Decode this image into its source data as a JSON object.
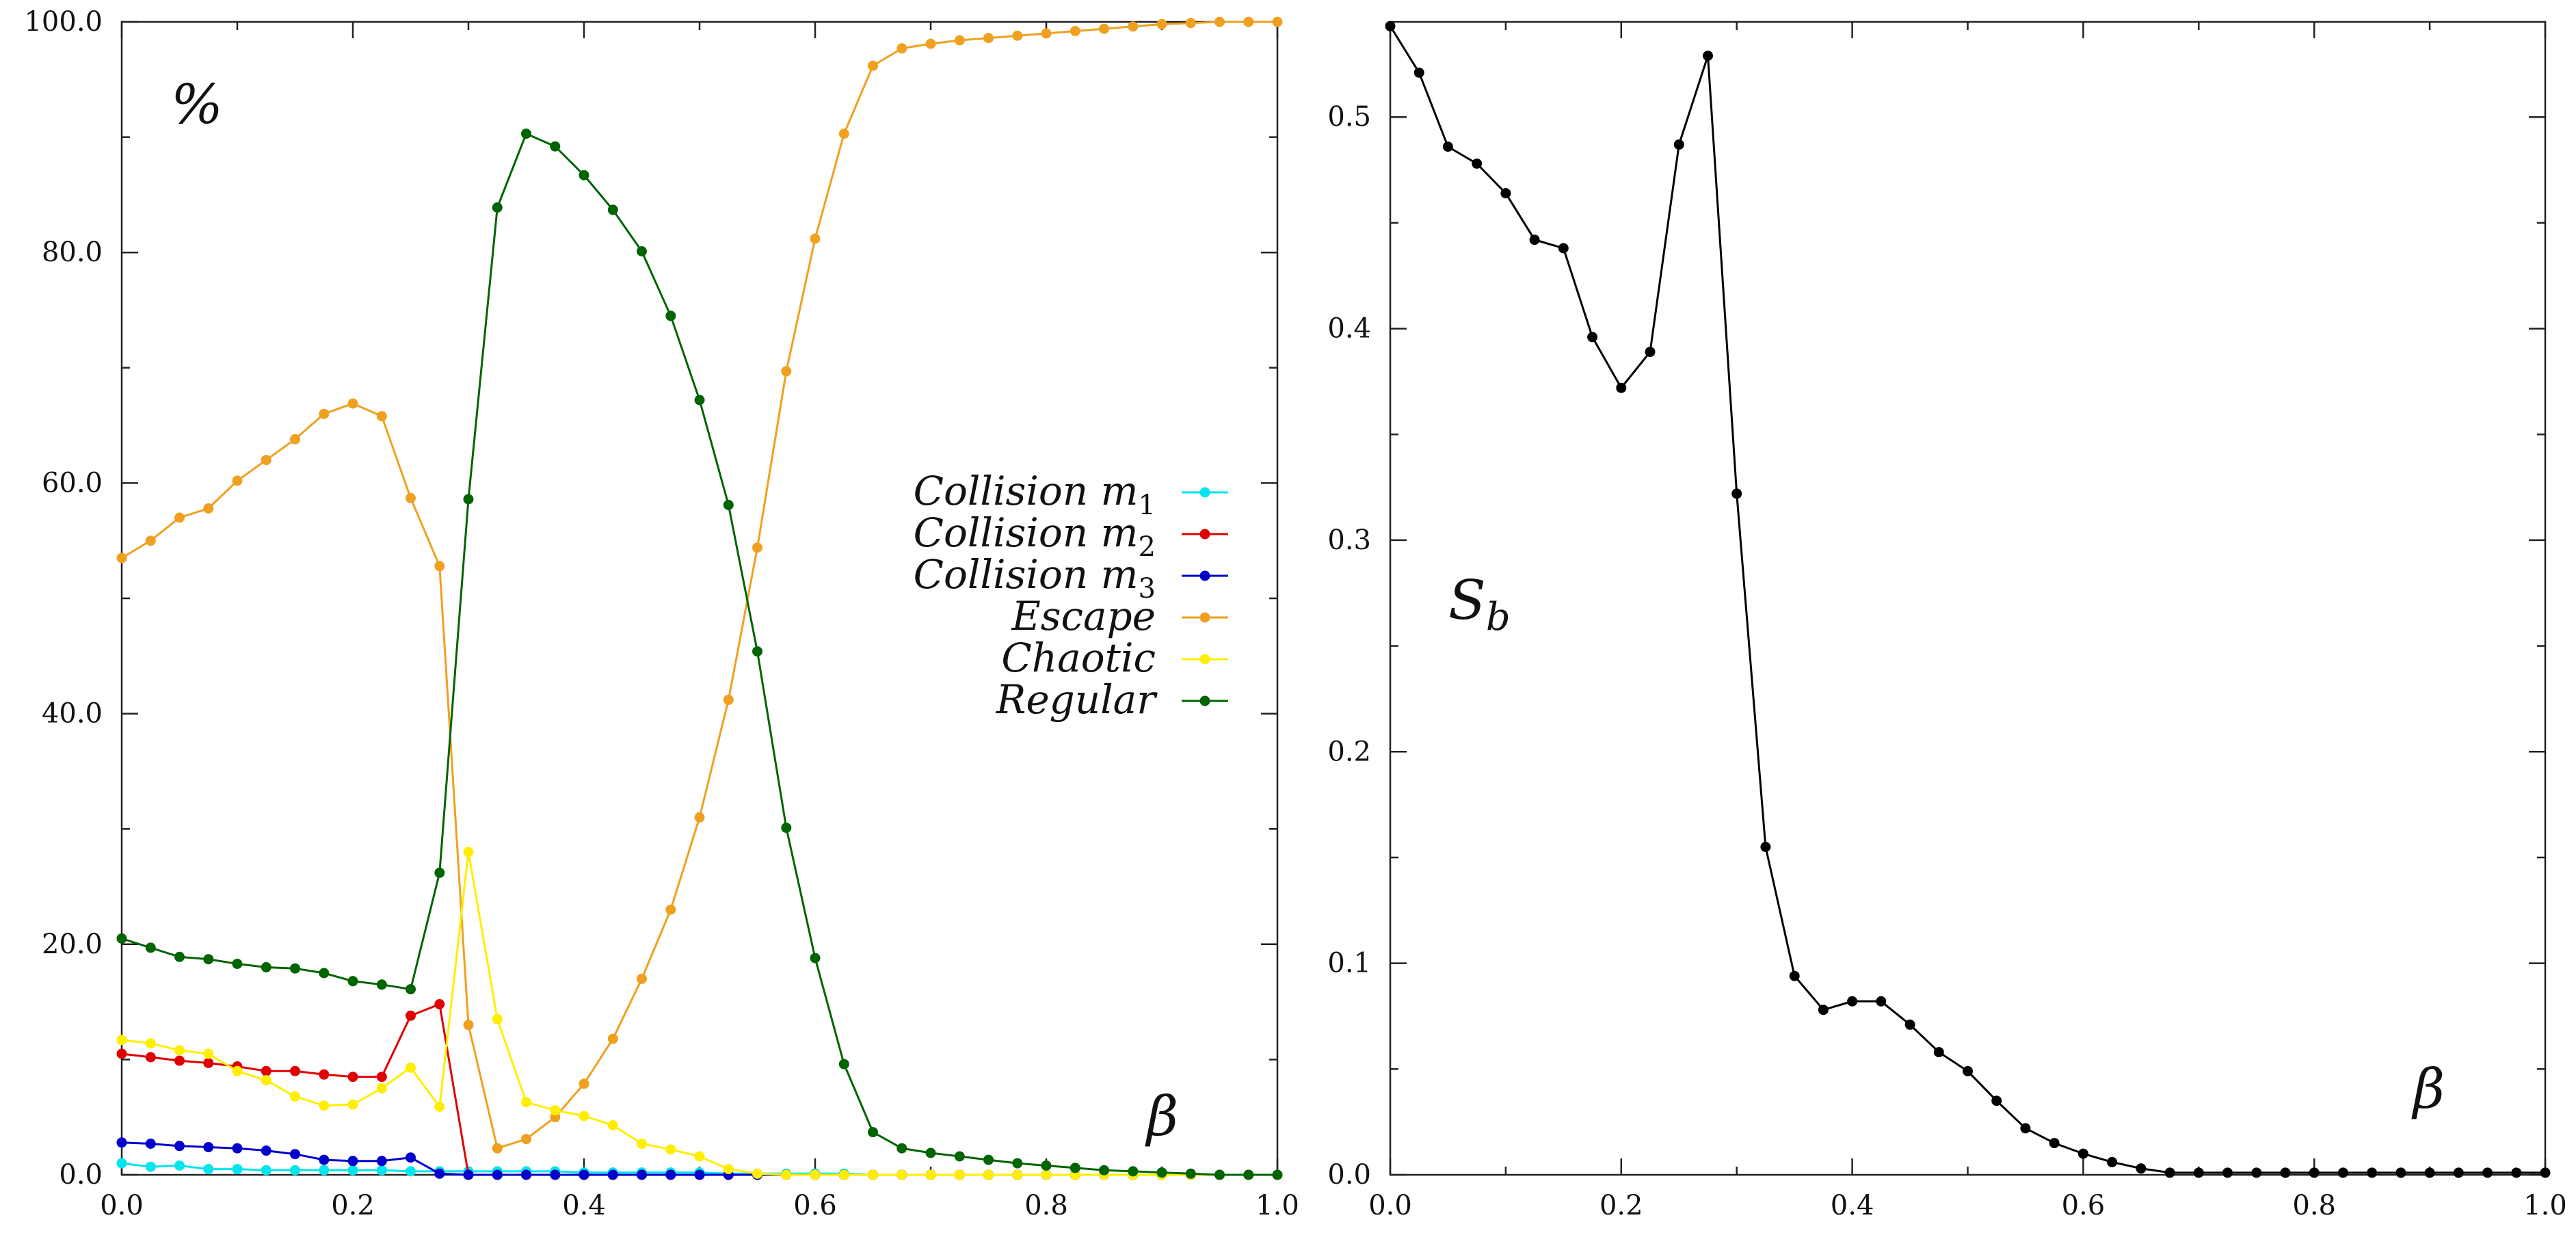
{
  "chart_data": [
    {
      "type": "line",
      "title": "",
      "corner_label": "%",
      "xlabel": "β",
      "ylabel": "",
      "xlim": [
        0.0,
        1.0
      ],
      "ylim": [
        0.0,
        100.0
      ],
      "x_ticks": [
        "0.0",
        "0.2",
        "0.4",
        "0.6",
        "0.8",
        "1.0"
      ],
      "y_ticks": [
        "0.0",
        "20.0",
        "40.0",
        "60.0",
        "80.0",
        "100.0"
      ],
      "legend_position": "center-right",
      "x": [
        0.0,
        0.025,
        0.05,
        0.075,
        0.1,
        0.125,
        0.15,
        0.175,
        0.2,
        0.225,
        0.25,
        0.275,
        0.3,
        0.325,
        0.35,
        0.375,
        0.4,
        0.425,
        0.45,
        0.475,
        0.5,
        0.525,
        0.55,
        0.575,
        0.6,
        0.625,
        0.65,
        0.675,
        0.7,
        0.725,
        0.75,
        0.775,
        0.8,
        0.825,
        0.85,
        0.875,
        0.9,
        0.925,
        0.95,
        0.975,
        1.0
      ],
      "series": [
        {
          "name": "Collision m1",
          "legend_text": "Collision m",
          "legend_sub": "1",
          "color": "#00e5ee",
          "values": [
            1.0,
            0.7,
            0.8,
            0.5,
            0.5,
            0.4,
            0.4,
            0.4,
            0.4,
            0.4,
            0.3,
            0.3,
            0.3,
            0.3,
            0.3,
            0.3,
            0.2,
            0.2,
            0.2,
            0.2,
            0.2,
            0.1,
            0.1,
            0.1,
            0.1,
            0.1,
            0.0,
            0.0,
            0.0,
            0.0,
            0.0,
            0.0,
            0.0,
            0.0,
            0.0,
            0.0,
            0.0,
            0.0,
            0.0,
            0.0,
            0.0
          ]
        },
        {
          "name": "Collision m2",
          "legend_text": "Collision m",
          "legend_sub": "2",
          "color": "#e00000",
          "values": [
            10.5,
            10.2,
            9.9,
            9.7,
            9.4,
            9.0,
            9.0,
            8.7,
            8.5,
            8.5,
            13.8,
            14.8,
            0.0,
            0.0,
            0.0,
            0.0,
            0.0,
            0.0,
            0.0,
            0.0,
            0.0,
            0.0,
            0.0,
            0.0,
            0.0,
            0.0,
            0.0,
            0.0,
            0.0,
            0.0,
            0.0,
            0.0,
            0.0,
            0.0,
            0.0,
            0.0,
            0.0,
            0.0,
            0.0,
            0.0,
            0.0
          ]
        },
        {
          "name": "Collision m3",
          "legend_text": "Collision m",
          "legend_sub": "3",
          "color": "#0000cc",
          "values": [
            2.8,
            2.7,
            2.5,
            2.4,
            2.3,
            2.1,
            1.8,
            1.3,
            1.2,
            1.2,
            1.5,
            0.1,
            0.0,
            0.0,
            0.0,
            0.0,
            0.0,
            0.0,
            0.0,
            0.0,
            0.0,
            0.0,
            0.0,
            0.0,
            0.0,
            0.0,
            0.0,
            0.0,
            0.0,
            0.0,
            0.0,
            0.0,
            0.0,
            0.0,
            0.0,
            0.0,
            0.0,
            0.0,
            0.0,
            0.0,
            0.0
          ]
        },
        {
          "name": "Escape",
          "legend_text": "Escape",
          "legend_sub": "",
          "color": "#f0a020",
          "values": [
            53.5,
            55.0,
            57.0,
            57.8,
            60.2,
            62.0,
            63.8,
            66.0,
            66.9,
            65.8,
            58.7,
            52.8,
            13.0,
            2.3,
            3.1,
            5.0,
            7.9,
            11.8,
            17.0,
            23.0,
            31.0,
            41.2,
            54.4,
            69.7,
            81.2,
            90.3,
            96.2,
            97.7,
            98.1,
            98.4,
            98.6,
            98.8,
            99.0,
            99.2,
            99.4,
            99.6,
            99.8,
            99.9,
            100.0,
            100.0,
            100.0
          ]
        },
        {
          "name": "Chaotic",
          "legend_text": "Chaotic",
          "legend_sub": "",
          "color": "#ffee00",
          "values": [
            11.7,
            11.4,
            10.8,
            10.5,
            9.0,
            8.2,
            6.8,
            6.0,
            6.1,
            7.5,
            9.3,
            5.9,
            28.0,
            13.5,
            6.3,
            5.6,
            5.1,
            4.3,
            2.7,
            2.2,
            1.6,
            0.5,
            0.1,
            0.0,
            0.0,
            0.0,
            0.0,
            0.0,
            0.0,
            0.0,
            0.0,
            0.0,
            0.0,
            0.0,
            0.0,
            0.0,
            0.0,
            0.0,
            0.0,
            0.0,
            0.0
          ]
        },
        {
          "name": "Regular",
          "legend_text": "Regular",
          "legend_sub": "",
          "color": "#006400",
          "values": [
            20.5,
            19.7,
            18.9,
            18.7,
            18.3,
            18.0,
            17.9,
            17.5,
            16.8,
            16.5,
            16.1,
            26.2,
            58.6,
            83.9,
            90.3,
            89.2,
            86.7,
            83.7,
            80.1,
            74.5,
            67.2,
            58.1,
            45.4,
            30.1,
            18.8,
            9.6,
            3.7,
            2.3,
            1.9,
            1.6,
            1.3,
            1.0,
            0.8,
            0.6,
            0.4,
            0.3,
            0.2,
            0.1,
            0.0,
            0.0,
            0.0
          ]
        }
      ]
    },
    {
      "type": "line",
      "title": "",
      "corner_label": "S",
      "corner_label_sub": "b",
      "xlabel": "β",
      "ylabel": "",
      "xlim": [
        0.0,
        1.0
      ],
      "ylim": [
        0.0,
        0.545
      ],
      "x_ticks": [
        "0.0",
        "0.2",
        "0.4",
        "0.6",
        "0.8",
        "1.0"
      ],
      "y_ticks": [
        "0.0",
        "0.1",
        "0.2",
        "0.3",
        "0.4",
        "0.5"
      ],
      "x": [
        0.0,
        0.025,
        0.05,
        0.075,
        0.1,
        0.125,
        0.15,
        0.175,
        0.2,
        0.225,
        0.25,
        0.275,
        0.3,
        0.325,
        0.35,
        0.375,
        0.4,
        0.425,
        0.45,
        0.475,
        0.5,
        0.525,
        0.55,
        0.575,
        0.6,
        0.625,
        0.65,
        0.675,
        0.7,
        0.725,
        0.75,
        0.775,
        0.8,
        0.825,
        0.85,
        0.875,
        0.9,
        0.925,
        0.95,
        0.975,
        1.0
      ],
      "series": [
        {
          "name": "Sb",
          "color": "#000000",
          "values": [
            0.543,
            0.521,
            0.486,
            0.478,
            0.464,
            0.442,
            0.438,
            0.396,
            0.372,
            0.389,
            0.487,
            0.529,
            0.322,
            0.155,
            0.094,
            0.078,
            0.082,
            0.082,
            0.071,
            0.058,
            0.049,
            0.035,
            0.022,
            0.015,
            0.01,
            0.006,
            0.003,
            0.001,
            0.001,
            0.001,
            0.001,
            0.001,
            0.001,
            0.001,
            0.001,
            0.001,
            0.001,
            0.001,
            0.001,
            0.001,
            0.001
          ]
        }
      ]
    }
  ]
}
